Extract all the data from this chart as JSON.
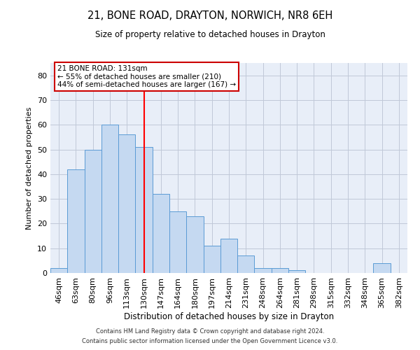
{
  "title": "21, BONE ROAD, DRAYTON, NORWICH, NR8 6EH",
  "subtitle": "Size of property relative to detached houses in Drayton",
  "xlabel": "Distribution of detached houses by size in Drayton",
  "ylabel": "Number of detached properties",
  "bin_labels": [
    "46sqm",
    "63sqm",
    "80sqm",
    "96sqm",
    "113sqm",
    "130sqm",
    "147sqm",
    "164sqm",
    "180sqm",
    "197sqm",
    "214sqm",
    "231sqm",
    "248sqm",
    "264sqm",
    "281sqm",
    "298sqm",
    "315sqm",
    "332sqm",
    "348sqm",
    "365sqm",
    "382sqm"
  ],
  "bar_heights": [
    2,
    42,
    50,
    60,
    56,
    51,
    32,
    25,
    23,
    11,
    14,
    7,
    2,
    2,
    1,
    0,
    0,
    0,
    0,
    4,
    0
  ],
  "bar_color": "#c5d9f1",
  "bar_edge_color": "#5b9bd5",
  "ylim": [
    0,
    85
  ],
  "yticks": [
    0,
    10,
    20,
    30,
    40,
    50,
    60,
    70,
    80
  ],
  "red_line_x": 5.5,
  "annotation_text": "21 BONE ROAD: 131sqm\n← 55% of detached houses are smaller (210)\n44% of semi-detached houses are larger (167) →",
  "annotation_box_color": "#ffffff",
  "annotation_box_edge": "#cc0000",
  "footer1": "Contains HM Land Registry data © Crown copyright and database right 2024.",
  "footer2": "Contains public sector information licensed under the Open Government Licence v3.0.",
  "background_color": "#ffffff",
  "plot_bg_color": "#e8eef8",
  "grid_color": "#c0c8d8"
}
